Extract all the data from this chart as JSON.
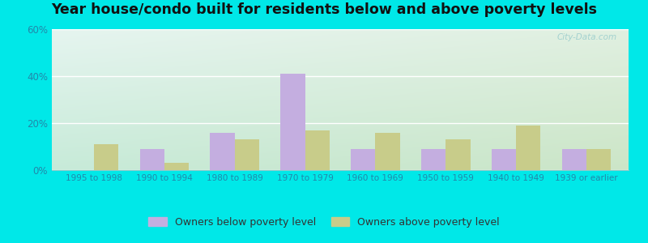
{
  "title": "Year house/condo built for residents below and above poverty levels",
  "categories": [
    "1995 to 1998",
    "1990 to 1994",
    "1980 to 1989",
    "1970 to 1979",
    "1960 to 1969",
    "1950 to 1959",
    "1940 to 1949",
    "1939 or earlier"
  ],
  "below_poverty": [
    0,
    9,
    16,
    41,
    9,
    9,
    9,
    9
  ],
  "above_poverty": [
    11,
    3,
    13,
    17,
    16,
    13,
    19,
    9
  ],
  "below_color": "#c4aee0",
  "above_color": "#c8cc8a",
  "ylim": [
    0,
    60
  ],
  "yticks": [
    0,
    20,
    40,
    60
  ],
  "ytick_labels": [
    "0%",
    "20%",
    "40%",
    "60%"
  ],
  "background_outer": "#00e8e8",
  "legend_below": "Owners below poverty level",
  "legend_above": "Owners above poverty level",
  "bar_width": 0.35,
  "title_fontsize": 12.5,
  "watermark": "City-Data.com",
  "grid_color": "#ffffff",
  "tick_color": "#2288aa",
  "label_color": "#2288aa"
}
